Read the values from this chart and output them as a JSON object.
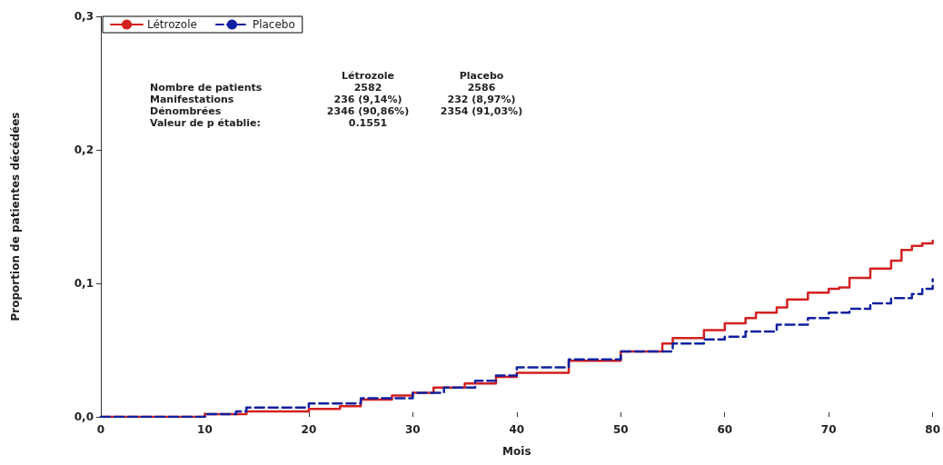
{
  "chart_data": {
    "type": "step",
    "xlabel": "Mois",
    "ylabel": "Proportion de patientes décédées",
    "xlim": [
      0,
      80
    ],
    "xticks": [
      0,
      10,
      20,
      30,
      40,
      50,
      60,
      70,
      80
    ],
    "ylim": [
      0,
      0.3
    ],
    "yticks": [
      {
        "value": 0,
        "label": "0,0"
      },
      {
        "value": 0.1,
        "label": "0,1"
      },
      {
        "value": 0.2,
        "label": "0,2"
      },
      {
        "value": 0.3,
        "label": "0,3"
      }
    ],
    "grid": false,
    "legend": "top left",
    "marker": "none",
    "series": [
      {
        "name": "Létrozole",
        "color": "#d42020",
        "line_style": "solid",
        "x": [
          0,
          10,
          14,
          20,
          23,
          25,
          28,
          30,
          32,
          35,
          38,
          40,
          45,
          50,
          54,
          55,
          58,
          60,
          62,
          63,
          65,
          66,
          68,
          70,
          71,
          72,
          74,
          76,
          77,
          78,
          79,
          80
        ],
        "values": [
          0,
          0.002,
          0.004,
          0.006,
          0.008,
          0.013,
          0.016,
          0.018,
          0.022,
          0.025,
          0.03,
          0.033,
          0.042,
          0.049,
          0.055,
          0.059,
          0.065,
          0.07,
          0.074,
          0.078,
          0.082,
          0.088,
          0.093,
          0.096,
          0.097,
          0.104,
          0.111,
          0.117,
          0.125,
          0.128,
          0.13,
          0.132
        ]
      },
      {
        "name": "Placebo",
        "color": "#1020a0",
        "line_style": "dashed",
        "x": [
          0,
          10,
          13,
          14,
          20,
          25,
          30,
          33,
          36,
          38,
          40,
          45,
          50,
          55,
          58,
          60,
          62,
          65,
          68,
          70,
          72,
          74,
          76,
          78,
          79,
          80
        ],
        "values": [
          0,
          0.002,
          0.004,
          0.007,
          0.01,
          0.014,
          0.018,
          0.022,
          0.027,
          0.031,
          0.037,
          0.043,
          0.049,
          0.055,
          0.058,
          0.06,
          0.064,
          0.069,
          0.074,
          0.078,
          0.081,
          0.085,
          0.089,
          0.092,
          0.096,
          0.103
        ]
      }
    ],
    "annotations": [
      "Létrozole",
      "Placebo",
      "Nombre de patients",
      "2582",
      "2586",
      "Manifestations",
      "236 (9,14%)",
      "232 (8,97%)",
      "Dénombrées",
      "2346 (90,86%)",
      "2354 (91,03%)",
      "Valeur de p établie:",
      "0.1551"
    ]
  }
}
